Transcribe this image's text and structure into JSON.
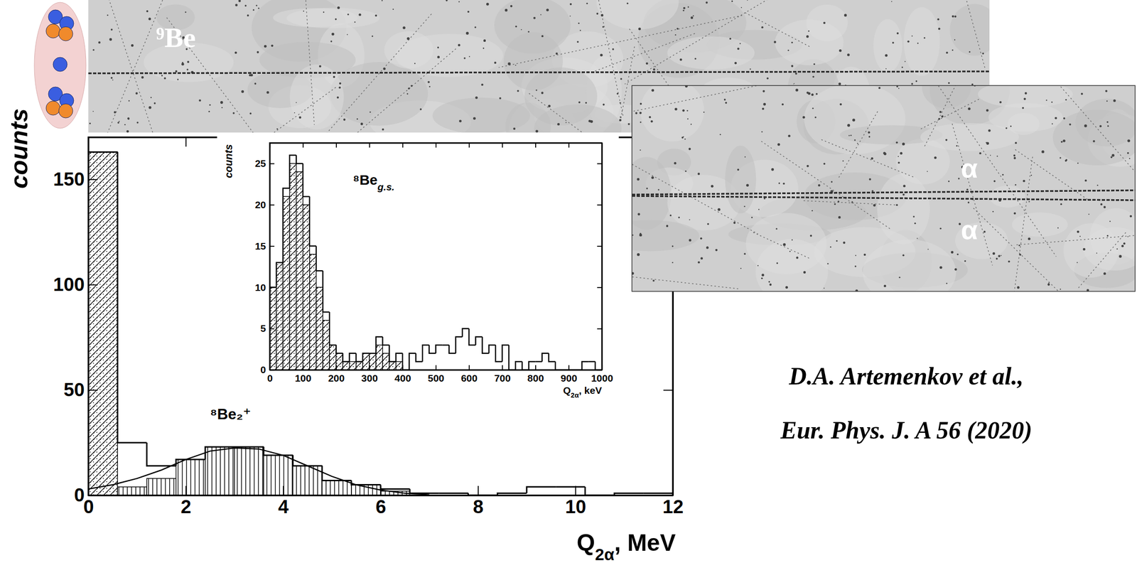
{
  "chart_data": [
    {
      "type": "histogram",
      "x_label": "Q2α, MeV",
      "y_label": "counts",
      "bins": [
        0,
        0.6,
        1.2,
        1.8,
        2.4,
        3,
        3.6,
        4.2,
        4.8,
        5.4,
        6,
        6.6,
        7.2,
        7.8,
        8.4,
        9,
        9.6,
        10.2,
        10.8,
        11.4,
        12
      ],
      "xlim": [
        0,
        12
      ],
      "ylim": [
        0,
        170
      ],
      "xticks": [
        0,
        2,
        4,
        6,
        8,
        10,
        12
      ],
      "yticks": [
        0,
        50,
        100,
        150
      ],
      "annotations": [
        "⁸Be₂⁺"
      ],
      "series": [
        {
          "type": "bar",
          "marker": "diagonal",
          "color": "#000000",
          "values": [
            163,
            null,
            null,
            null,
            null,
            null,
            null,
            null,
            null,
            null,
            null,
            null,
            null,
            null,
            null,
            null,
            null,
            null,
            null,
            null
          ]
        },
        {
          "type": "bar",
          "marker": "vertical",
          "color": "#000000",
          "values": [
            null,
            4,
            8,
            17,
            23,
            23,
            19,
            14,
            7,
            5,
            2,
            null,
            null,
            null,
            null,
            null,
            null,
            null,
            null,
            null
          ]
        },
        {
          "type": "step",
          "color": "#000000",
          "values": [
            163,
            25,
            14,
            17,
            23,
            23,
            19,
            14,
            7,
            5,
            3,
            1,
            1,
            0,
            1,
            4,
            4,
            0,
            1,
            1
          ]
        },
        {
          "type": "line",
          "color": "#000000",
          "x": [
            0,
            0.5,
            1,
            1.5,
            2,
            2.5,
            3,
            3.5,
            4,
            4.5,
            5,
            5.5,
            6,
            6.5,
            7
          ],
          "values": [
            3,
            5,
            8,
            12,
            17,
            21,
            22.5,
            22,
            19,
            14,
            9,
            5,
            2.5,
            1,
            0.3
          ]
        }
      ]
    },
    {
      "type": "histogram",
      "x_label": "Q2α, keV",
      "y_label": "counts",
      "bins": [
        0,
        20,
        40,
        60,
        80,
        100,
        120,
        140,
        160,
        180,
        200,
        220,
        240,
        260,
        280,
        300,
        320,
        340,
        360,
        380,
        400,
        420,
        440,
        460,
        480,
        500,
        520,
        540,
        560,
        580,
        600,
        620,
        640,
        660,
        680,
        700,
        720,
        740,
        760,
        780,
        800,
        820,
        840,
        860,
        880,
        900,
        920,
        940,
        960,
        980,
        1000
      ],
      "xlim": [
        0,
        1000
      ],
      "ylim": [
        0,
        27.5
      ],
      "xticks": [
        0,
        100,
        200,
        300,
        400,
        500,
        600,
        700,
        800,
        900,
        1000
      ],
      "yticks": [
        0,
        5,
        10,
        15,
        20,
        25
      ],
      "annotations": [
        "⁸Beg.s."
      ],
      "series": [
        {
          "type": "bar",
          "marker": "diagonal",
          "color": "#000000",
          "values": [
            10,
            13,
            21,
            25,
            24,
            20,
            14,
            10,
            6,
            3,
            2,
            1,
            1,
            1,
            2,
            2,
            3,
            2,
            1,
            1,
            null,
            null,
            null,
            null,
            null,
            null,
            null,
            null,
            null,
            null,
            null,
            null,
            null,
            null,
            null,
            null,
            null,
            null,
            null,
            null,
            null,
            null,
            null,
            null,
            null,
            null,
            null,
            null,
            null,
            null
          ]
        },
        {
          "type": "step",
          "color": "#000000",
          "values": [
            10,
            13,
            22,
            26,
            25,
            21,
            15,
            12,
            7,
            3,
            2,
            1,
            2,
            1,
            2,
            2,
            4,
            3,
            1,
            2,
            0,
            2,
            1,
            3,
            2,
            3,
            3,
            2,
            4,
            5,
            3,
            4,
            2,
            3,
            1,
            3,
            0,
            1,
            0,
            1,
            1,
            2,
            1,
            0,
            0,
            0,
            0,
            1,
            1,
            0
          ]
        }
      ]
    }
  ],
  "photo_labels": {
    "nucleus": "⁹Be",
    "tracks": [
      "α",
      "α"
    ]
  },
  "citation": [
    "D.A. Artemenkov et al.,",
    "Eur. Phys. J. A 56 (2020)"
  ]
}
